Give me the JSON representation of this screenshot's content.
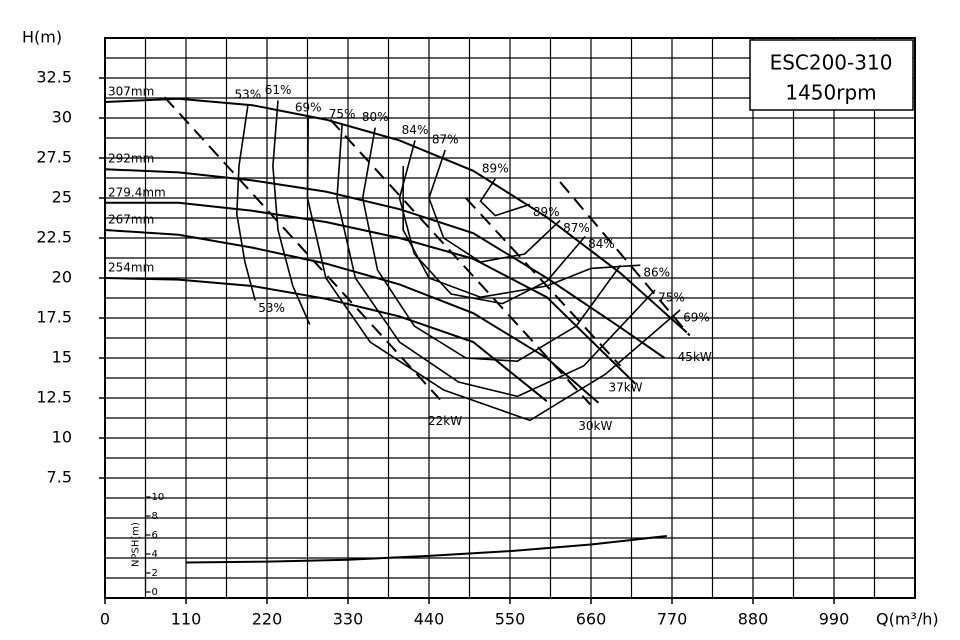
{
  "chart_data": {
    "type": "line",
    "title": "ESC200-310",
    "subtitle": "1450rpm",
    "x_label": "Q(m³/h)",
    "y_label": "H(m)",
    "color": "#000000",
    "xlim": [
      0,
      1100
    ],
    "ylim": [
      0,
      35
    ],
    "xticks": [
      0,
      110,
      220,
      330,
      440,
      550,
      660,
      770,
      880,
      990
    ],
    "yticks": [
      7.5,
      10,
      12.5,
      15,
      17.5,
      20,
      22.5,
      25,
      27.5,
      30,
      32.5
    ],
    "xgrid": [
      0,
      55,
      110,
      165,
      220,
      275,
      330,
      385,
      440,
      495,
      550,
      605,
      660,
      715,
      770,
      825,
      880,
      935,
      990,
      1045,
      1100
    ],
    "ygrid": [
      0,
      1.25,
      2.5,
      3.75,
      5,
      6.25,
      7.5,
      8.75,
      10,
      11.25,
      12.5,
      13.75,
      15,
      16.25,
      17.5,
      18.75,
      20,
      21.25,
      22.5,
      23.75,
      25,
      26.25,
      27.5,
      28.75,
      30,
      31.25,
      32.5,
      33.75,
      35
    ],
    "series": [
      {
        "name": "307mm",
        "x": [
          0,
          100,
          200,
          300,
          400,
          500,
          600,
          700,
          790
        ],
        "values": [
          31.0,
          31.2,
          30.8,
          29.9,
          28.6,
          26.7,
          23.8,
          20.3,
          16.6
        ]
      },
      {
        "name": "292mm",
        "x": [
          0,
          100,
          200,
          300,
          400,
          500,
          600,
          700,
          760
        ],
        "values": [
          26.8,
          26.6,
          26.1,
          25.4,
          24.3,
          22.8,
          20.0,
          16.9,
          15.0
        ]
      },
      {
        "name": "279.4mm",
        "x": [
          0,
          100,
          200,
          300,
          400,
          500,
          600,
          720
        ],
        "values": [
          24.7,
          24.7,
          24.2,
          23.5,
          22.5,
          21.2,
          18.8,
          13.4
        ]
      },
      {
        "name": "267mm",
        "x": [
          0,
          100,
          200,
          300,
          400,
          500,
          600,
          670
        ],
        "values": [
          23.0,
          22.7,
          21.9,
          20.9,
          19.6,
          17.8,
          15.0,
          12.2
        ]
      },
      {
        "name": "254mm",
        "x": [
          0,
          100,
          200,
          300,
          400,
          500,
          600
        ],
        "values": [
          20.0,
          19.9,
          19.5,
          18.7,
          17.6,
          16.0,
          12.3
        ]
      }
    ],
    "efficiency": [
      {
        "name": "53%",
        "label_at": [
          "start",
          "end"
        ],
        "q": [
          194,
          182,
          179,
          190,
          204
        ],
        "h": [
          30.8,
          27.0,
          24.0,
          21.0,
          18.6
        ]
      },
      {
        "name": "61%",
        "label_at": [
          "start"
        ],
        "q": [
          235,
          228,
          235,
          255,
          278
        ],
        "h": [
          31.1,
          27.0,
          23.0,
          19.5,
          17.1
        ]
      },
      {
        "name": "69%",
        "label_at": [
          "start",
          "end"
        ],
        "q": [
          276,
          275,
          300,
          360,
          460,
          577,
          680,
          781
        ],
        "h": [
          30.0,
          25.0,
          20.0,
          16.0,
          13.0,
          11.1,
          14.0,
          18.0
        ]
      },
      {
        "name": "75%",
        "label_at": [
          "start",
          "end"
        ],
        "q": [
          322,
          315,
          340,
          400,
          480,
          560,
          650,
          747
        ],
        "h": [
          29.6,
          25.0,
          20.0,
          16.0,
          13.5,
          12.6,
          14.5,
          19.25
        ]
      },
      {
        "name": "80%",
        "label_at": [
          "start"
        ],
        "q": [
          367,
          350,
          370,
          420,
          490,
          560,
          640,
          700
        ],
        "h": [
          29.4,
          25.0,
          20.5,
          17.0,
          15.0,
          14.8,
          17.0,
          20.8
        ]
      },
      {
        "name": "86%",
        "label_at": [
          "end"
        ],
        "q": [
          405,
          405,
          440,
          510,
          600,
          660,
          727
        ],
        "h": [
          27.0,
          23.0,
          20.0,
          18.8,
          19.5,
          20.6,
          20.8
        ]
      },
      {
        "name": "84%",
        "label_at": [
          "start",
          "end"
        ],
        "q": [
          421,
          400,
          420,
          470,
          540,
          600,
          652
        ],
        "h": [
          28.6,
          25.0,
          21.5,
          19.0,
          18.4,
          19.8,
          22.6
        ]
      },
      {
        "name": "87%",
        "label_at": [
          "start",
          "end"
        ],
        "q": [
          462,
          440,
          460,
          510,
          570,
          618
        ],
        "h": [
          28.0,
          25.0,
          22.5,
          21.0,
          21.5,
          23.6
        ]
      },
      {
        "name": "89%",
        "label_at": [
          "start",
          "end"
        ],
        "q": [
          530,
          510,
          530,
          577
        ],
        "h": [
          26.2,
          24.8,
          23.9,
          24.6
        ]
      }
    ],
    "power": [
      {
        "name": "22kW",
        "q": [
          81,
          455
        ],
        "h": [
          31.3,
          12.4
        ]
      },
      {
        "name": "30kW",
        "q": [
          306,
          659
        ],
        "h": [
          29.9,
          12.1
        ]
      },
      {
        "name": "37kW",
        "q": [
          490,
          700
        ],
        "h": [
          25.0,
          14.5
        ]
      },
      {
        "name": "45kW",
        "q": [
          618,
          794
        ],
        "h": [
          26.0,
          16.4
        ]
      }
    ],
    "npsh": {
      "label": "NPSH(m)",
      "ylim": [
        0,
        10
      ],
      "yticks": [
        0,
        2,
        4,
        6,
        8,
        10
      ],
      "axis_at": 55,
      "x": [
        110,
        220,
        330,
        440,
        550,
        660,
        763
      ],
      "values": [
        3.1,
        3.2,
        3.4,
        3.8,
        4.3,
        5.0,
        5.9
      ]
    }
  }
}
